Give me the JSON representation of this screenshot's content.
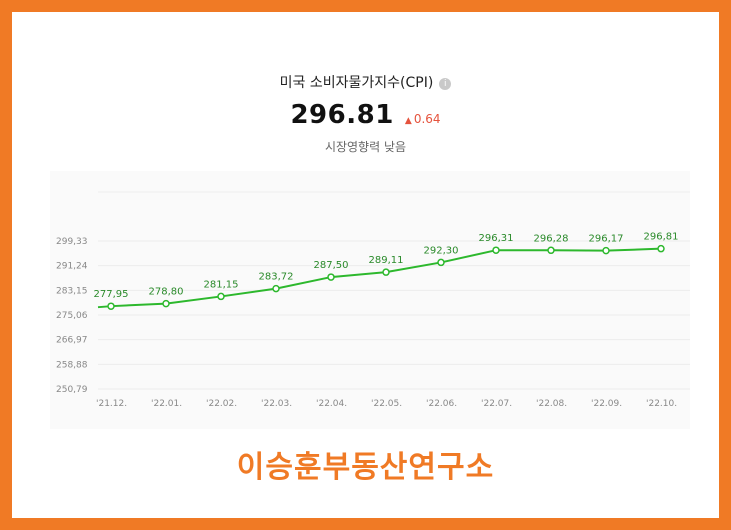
{
  "header": {
    "title": "미국 소비자물가지수(CPI)",
    "value": "296.81",
    "change": "0.64",
    "influence": "시장영향력 낮음"
  },
  "footer": {
    "brand": "이승훈부동산연구소"
  },
  "colors": {
    "frame": "#f07a25",
    "line": "#2db82d",
    "up": "#e5533d"
  },
  "chart_data": {
    "type": "line",
    "categories": [
      "'21.12.",
      "'22.01.",
      "'22.02.",
      "'22.03.",
      "'22.04.",
      "'22.05.",
      "'22.06.",
      "'22.07.",
      "'22.08.",
      "'22.09.",
      "'22.10."
    ],
    "values": [
      277.95,
      278.8,
      281.15,
      283.72,
      287.5,
      289.11,
      292.3,
      296.31,
      296.28,
      296.17,
      296.81
    ],
    "value_labels": [
      "277,95",
      "278,80",
      "281,15",
      "283,72",
      "287,50",
      "289,11",
      "292,30",
      "296,31",
      "296,28",
      "296,17",
      "296,81"
    ],
    "y_ticks": [
      "299,33",
      "291,24",
      "283,15",
      "275,06",
      "266,97",
      "258,88",
      "250,79"
    ],
    "y_tick_values": [
      299.33,
      291.24,
      283.15,
      275.06,
      266.97,
      258.88,
      250.79
    ],
    "ylim": [
      250.79,
      299.33
    ],
    "grid": true
  }
}
